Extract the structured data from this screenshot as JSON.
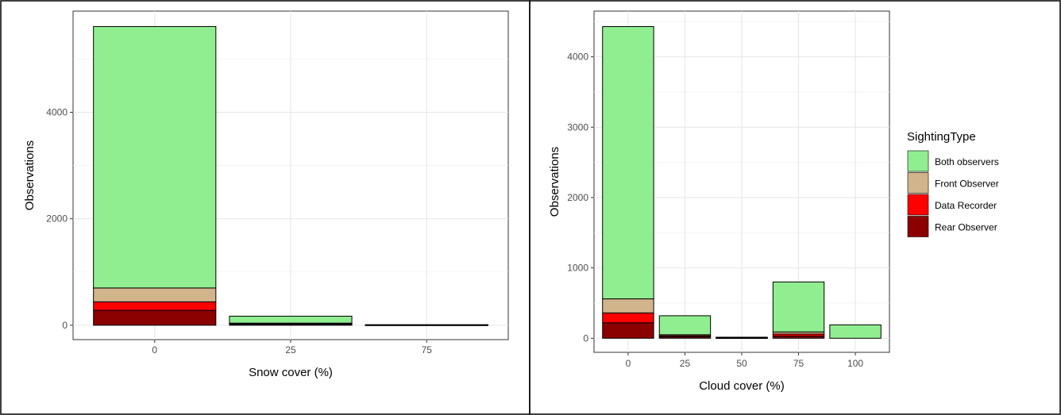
{
  "legend": {
    "title": "SightingType",
    "items": [
      {
        "name": "Both observers",
        "color": "#90EE90"
      },
      {
        "name": "Front Observer",
        "color": "#D2B48C"
      },
      {
        "name": "Data Recorder",
        "color": "#FF0000"
      },
      {
        "name": "Rear Observer",
        "color": "#8B0000"
      }
    ]
  },
  "chart_data": [
    {
      "type": "bar",
      "stacked": true,
      "xlabel": "Snow cover (%)",
      "ylabel": "Observations",
      "categories": [
        "0",
        "25",
        "75"
      ],
      "ylim": [
        -270,
        5900
      ],
      "yticks": [
        0,
        2000,
        4000
      ],
      "grid": true,
      "series": [
        {
          "name": "Rear Observer",
          "values": [
            280,
            15,
            3
          ]
        },
        {
          "name": "Data Recorder",
          "values": [
            160,
            10,
            2
          ]
        },
        {
          "name": "Front Observer",
          "values": [
            260,
            15,
            3
          ]
        },
        {
          "name": "Both observers",
          "values": [
            4910,
            130,
            2
          ]
        }
      ]
    },
    {
      "type": "bar",
      "stacked": true,
      "xlabel": "Cloud cover (%)",
      "ylabel": "Observations",
      "categories": [
        "0",
        "25",
        "50",
        "75",
        "100"
      ],
      "ylim": [
        -200,
        4650
      ],
      "yticks": [
        0,
        1000,
        2000,
        3000,
        4000
      ],
      "grid": true,
      "legend_position": "right",
      "series": [
        {
          "name": "Rear Observer",
          "values": [
            220,
            20,
            4,
            30,
            0
          ]
        },
        {
          "name": "Data Recorder",
          "values": [
            140,
            15,
            3,
            30,
            0
          ]
        },
        {
          "name": "Front Observer",
          "values": [
            200,
            15,
            3,
            30,
            0
          ]
        },
        {
          "name": "Both observers",
          "values": [
            3870,
            270,
            5,
            710,
            190
          ]
        }
      ]
    }
  ]
}
